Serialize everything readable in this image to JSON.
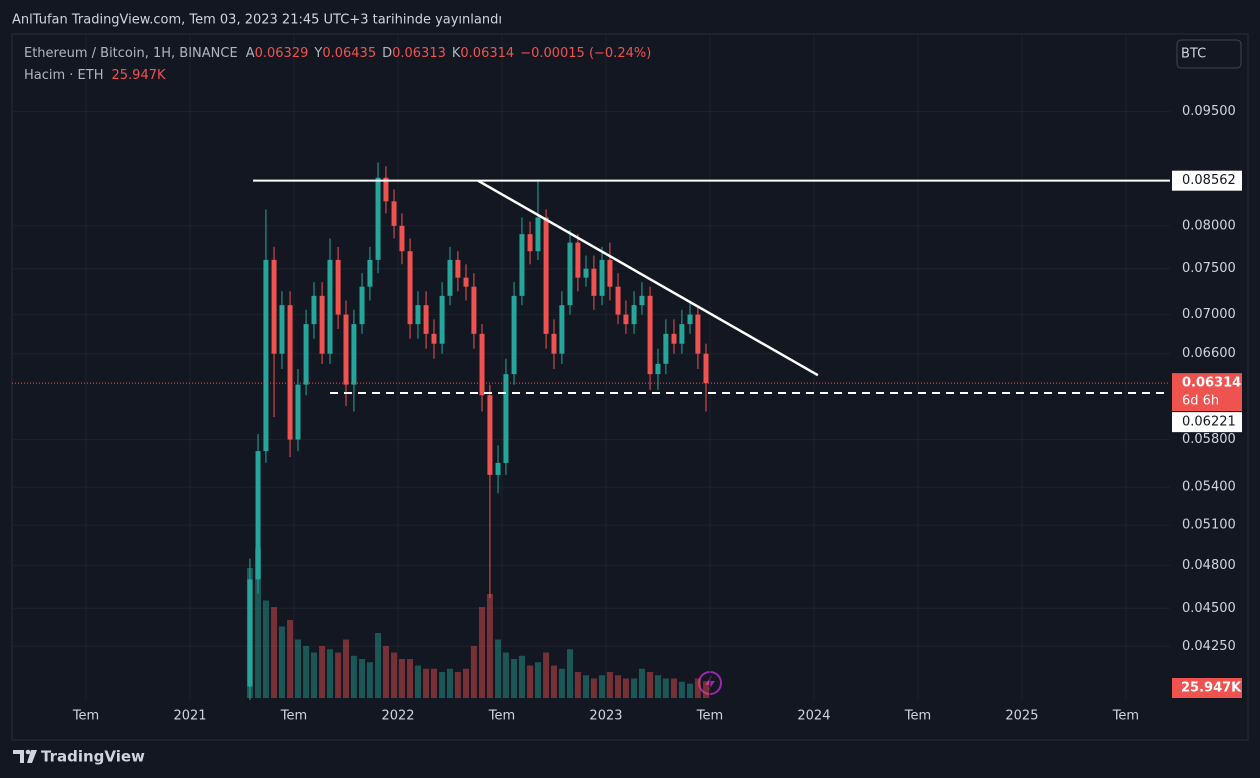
{
  "chart_data": {
    "type": "candlestick",
    "header": "AnlTufan TradingView.com, Tem 03, 2023 21:45 UTC+3 tarihinde yayınlandı",
    "title": "Ethereum / Bitcoin, 1H, BINANCE",
    "ohlc_labels": [
      "A",
      "Y",
      "D",
      "K"
    ],
    "ohlc_values": [
      0.06329,
      0.06435,
      0.06313,
      0.06314
    ],
    "change_label": "−0.00015 (−0.24%)",
    "volume_label": "Hacim · ETH",
    "volume_last": {
      "value": 25947,
      "label": "25.947K"
    },
    "currency": "BTC",
    "last_price": 0.06314,
    "countdown": "6d 6h",
    "brand": "TradingView",
    "x": [
      2021.288,
      2021.327,
      2021.365,
      2021.404,
      2021.442,
      2021.481,
      2021.519,
      2021.558,
      2021.596,
      2021.635,
      2021.673,
      2021.712,
      2021.75,
      2021.788,
      2021.827,
      2021.865,
      2021.904,
      2021.942,
      2021.981,
      2022.019,
      2022.058,
      2022.096,
      2022.135,
      2022.173,
      2022.212,
      2022.25,
      2022.288,
      2022.327,
      2022.365,
      2022.404,
      2022.442,
      2022.481,
      2022.519,
      2022.558,
      2022.596,
      2022.635,
      2022.673,
      2022.712,
      2022.75,
      2022.788,
      2022.827,
      2022.865,
      2022.904,
      2022.942,
      2022.981,
      2023.019,
      2023.058,
      2023.096,
      2023.135,
      2023.173,
      2023.212,
      2023.25,
      2023.288,
      2023.327,
      2023.365,
      2023.404,
      2023.442,
      2023.481
    ],
    "open": [
      0.04,
      0.047,
      0.057,
      0.076,
      0.066,
      0.071,
      0.058,
      0.063,
      0.069,
      0.072,
      0.066,
      0.076,
      0.07,
      0.063,
      0.069,
      0.073,
      0.076,
      0.086,
      0.083,
      0.08,
      0.077,
      0.069,
      0.071,
      0.068,
      0.067,
      0.072,
      0.076,
      0.074,
      0.073,
      0.068,
      0.062,
      0.055,
      0.056,
      0.064,
      0.072,
      0.079,
      0.077,
      0.081,
      0.068,
      0.066,
      0.071,
      0.078,
      0.074,
      0.075,
      0.072,
      0.076,
      0.073,
      0.07,
      0.069,
      0.071,
      0.072,
      0.064,
      0.065,
      0.068,
      0.067,
      0.069,
      0.07,
      0.066
    ],
    "high": [
      0.0485,
      0.0585,
      0.082,
      0.0775,
      0.0725,
      0.0725,
      0.0645,
      0.0705,
      0.0735,
      0.0735,
      0.0785,
      0.0775,
      0.0715,
      0.0705,
      0.0745,
      0.0775,
      0.088,
      0.0875,
      0.0845,
      0.0815,
      0.0785,
      0.0725,
      0.0725,
      0.0695,
      0.0735,
      0.0775,
      0.077,
      0.0755,
      0.0745,
      0.069,
      0.063,
      0.0575,
      0.0655,
      0.0735,
      0.081,
      0.0805,
      0.0858,
      0.082,
      0.0695,
      0.0725,
      0.0795,
      0.079,
      0.0765,
      0.0765,
      0.0775,
      0.078,
      0.0745,
      0.0715,
      0.0725,
      0.0735,
      0.073,
      0.0665,
      0.0695,
      0.0695,
      0.0705,
      0.0715,
      0.071,
      0.067
    ],
    "low": [
      0.0392,
      0.046,
      0.056,
      0.06,
      0.0645,
      0.0565,
      0.057,
      0.062,
      0.0675,
      0.065,
      0.065,
      0.0685,
      0.061,
      0.0605,
      0.068,
      0.0715,
      0.0745,
      0.0815,
      0.0785,
      0.0755,
      0.0675,
      0.0675,
      0.0665,
      0.0655,
      0.066,
      0.071,
      0.0725,
      0.0715,
      0.0665,
      0.0605,
      0.0457,
      0.0535,
      0.055,
      0.063,
      0.071,
      0.0755,
      0.076,
      0.0665,
      0.0645,
      0.065,
      0.07,
      0.0725,
      0.073,
      0.0705,
      0.071,
      0.0715,
      0.069,
      0.068,
      0.068,
      0.07,
      0.0625,
      0.0625,
      0.064,
      0.066,
      0.066,
      0.068,
      0.0645,
      0.0605
    ],
    "close": [
      0.047,
      0.057,
      0.076,
      0.066,
      0.071,
      0.058,
      0.063,
      0.069,
      0.072,
      0.066,
      0.076,
      0.07,
      0.063,
      0.069,
      0.073,
      0.076,
      0.086,
      0.083,
      0.08,
      0.077,
      0.069,
      0.071,
      0.068,
      0.067,
      0.072,
      0.076,
      0.074,
      0.073,
      0.068,
      0.062,
      0.055,
      0.056,
      0.064,
      0.072,
      0.079,
      0.077,
      0.081,
      0.068,
      0.066,
      0.071,
      0.078,
      0.074,
      0.075,
      0.072,
      0.076,
      0.073,
      0.07,
      0.069,
      0.071,
      0.072,
      0.064,
      0.065,
      0.068,
      0.067,
      0.069,
      0.07,
      0.066,
      0.06314
    ],
    "volume": [
      200000,
      230000,
      150000,
      140000,
      110000,
      120000,
      90000,
      80000,
      70000,
      80000,
      75000,
      70000,
      90000,
      65000,
      60000,
      55000,
      100000,
      80000,
      70000,
      60000,
      60000,
      50000,
      45000,
      45000,
      40000,
      45000,
      40000,
      45000,
      80000,
      140000,
      160000,
      90000,
      70000,
      60000,
      65000,
      50000,
      55000,
      70000,
      50000,
      45000,
      75000,
      40000,
      35000,
      30000,
      35000,
      40000,
      35000,
      30000,
      30000,
      45000,
      40000,
      35000,
      30000,
      30000,
      25000,
      22000,
      30000,
      25947
    ],
    "volume_lim": [
      0,
      400000
    ],
    "xlim": [
      2020.144,
      2025.712
    ],
    "xticks": [
      {
        "value": 2020.5,
        "label": "Tem"
      },
      {
        "value": 2021,
        "label": "2021"
      },
      {
        "value": 2021.5,
        "label": "Tem"
      },
      {
        "value": 2022,
        "label": "2022"
      },
      {
        "value": 2022.5,
        "label": "Tem"
      },
      {
        "value": 2023,
        "label": "2023"
      },
      {
        "value": 2023.5,
        "label": "Tem"
      },
      {
        "value": 2024,
        "label": "2024"
      },
      {
        "value": 2024.5,
        "label": "Tem"
      },
      {
        "value": 2025,
        "label": "2025"
      },
      {
        "value": 2025.5,
        "label": "Tem"
      }
    ],
    "ylim": [
      0.0392,
      0.1066
    ],
    "yticks": [
      {
        "value": 0.095,
        "label": "0.09500"
      },
      {
        "value": 0.08,
        "label": "0.08000"
      },
      {
        "value": 0.075,
        "label": "0.07500"
      },
      {
        "value": 0.07,
        "label": "0.07000"
      },
      {
        "value": 0.066,
        "label": "0.06600"
      },
      {
        "value": 0.058,
        "label": "0.05800"
      },
      {
        "value": 0.054,
        "label": "0.05400"
      },
      {
        "value": 0.051,
        "label": "0.05100"
      },
      {
        "value": 0.048,
        "label": "0.04800"
      },
      {
        "value": 0.045,
        "label": "0.04500"
      },
      {
        "value": 0.0425,
        "label": "0.04250"
      }
    ],
    "log_scale": true,
    "grid": true,
    "up_color": "#26a69a",
    "down_color": "#ef5350",
    "drawings": {
      "resistance": {
        "y": 0.08562,
        "x_start": 2021.303
      },
      "trend": {
        "x": [
          2022.385,
          2024.019
        ],
        "y": [
          0.08562,
          0.0639
        ]
      },
      "support": {
        "y": 0.06221,
        "x_start": 2021.673
      }
    }
  }
}
